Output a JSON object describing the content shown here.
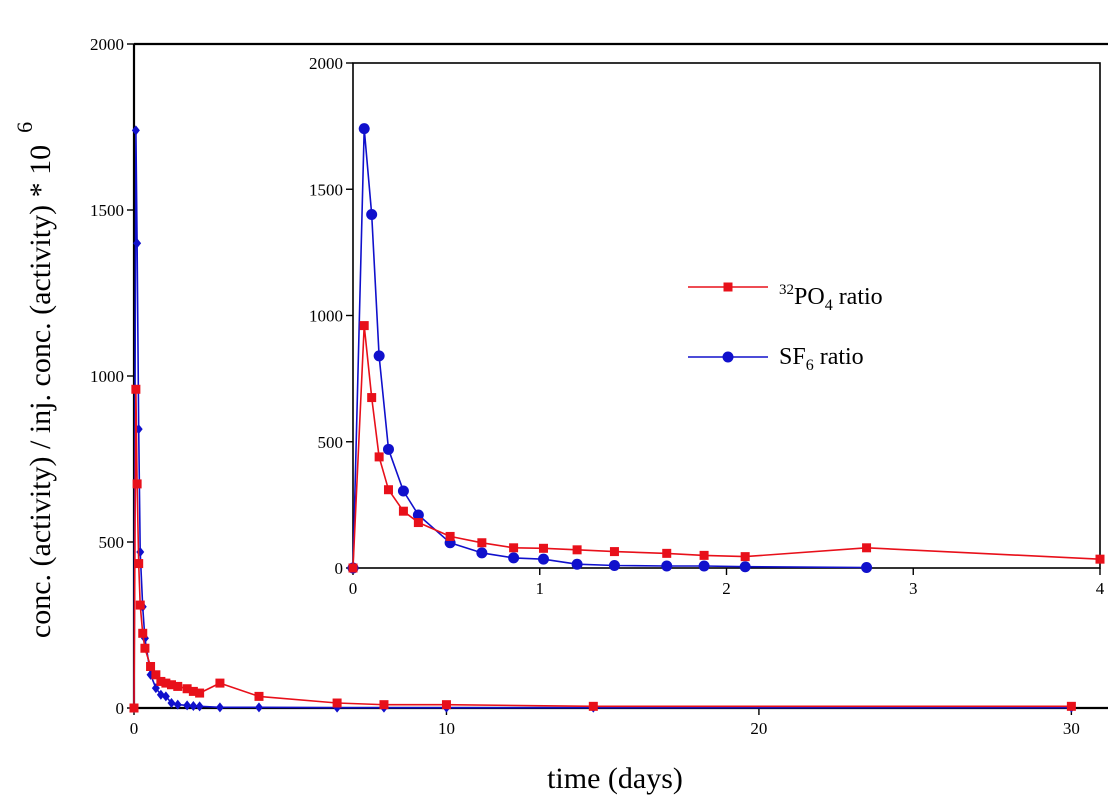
{
  "chart_data": [
    {
      "type": "line",
      "xlabel": "time (days)",
      "ylabel": "conc. (activity) / inj. conc. (activity) * 10",
      "ylabel_exponent": "6",
      "xlim": [
        0,
        30.5
      ],
      "ylim": [
        0,
        2000
      ],
      "xticks": [
        0,
        10,
        20,
        30
      ],
      "yticks": [
        0,
        500,
        1000,
        1500,
        2000
      ],
      "xtick_labels": [
        "0",
        "10",
        "20",
        "30"
      ],
      "ytick_labels": [
        "0",
        "500",
        "1000",
        "1500",
        "2000"
      ],
      "grid": false,
      "legend": "none",
      "colors": {
        "po4": "#e8101a",
        "sf6": "#1010cc"
      },
      "series": [
        {
          "key": "po4",
          "marker": "square",
          "x": [
            0,
            0.06,
            0.1,
            0.15,
            0.2,
            0.28,
            0.35,
            0.53,
            0.7,
            0.86,
            1.02,
            1.2,
            1.4,
            1.7,
            1.9,
            2.1,
            2.75,
            4,
            6.5,
            8,
            10,
            14.7,
            30
          ],
          "y": [
            0,
            960,
            675,
            435,
            310,
            225,
            180,
            125,
            100,
            80,
            75,
            70,
            65,
            58,
            50,
            45,
            75,
            35,
            15,
            10,
            10,
            5,
            5
          ]
        },
        {
          "key": "sf6",
          "marker": "diamond",
          "x": [
            0,
            0.06,
            0.1,
            0.15,
            0.2,
            0.28,
            0.35,
            0.53,
            0.7,
            0.86,
            1.02,
            1.2,
            1.4,
            1.7,
            1.9,
            2.1,
            2.75,
            4,
            6.5,
            8,
            10,
            14.7,
            30
          ],
          "y": [
            0,
            1740,
            1400,
            840,
            470,
            305,
            210,
            100,
            60,
            40,
            35,
            15,
            10,
            8,
            6,
            5,
            2,
            2,
            1,
            1,
            1,
            1,
            1
          ]
        }
      ]
    },
    {
      "type": "line",
      "xlim": [
        0,
        4
      ],
      "ylim": [
        0,
        2000
      ],
      "xticks": [
        0,
        1,
        2,
        3,
        4
      ],
      "yticks": [
        0,
        500,
        1000,
        1500,
        2000
      ],
      "xtick_labels": [
        "0",
        "1",
        "2",
        "3",
        "4"
      ],
      "ytick_labels": [
        "0",
        "500",
        "1000",
        "1500",
        "2000"
      ],
      "grid": false,
      "legend": "upper-right inside the plot",
      "colors": {
        "po4": "#e8101a",
        "sf6": "#1010cc"
      },
      "series": [
        {
          "key": "po4",
          "name_sup": "32",
          "name_main": "PO",
          "name_sub": "4",
          "name_tail": " ratio",
          "marker": "square",
          "x": [
            0,
            0.06,
            0.1,
            0.14,
            0.19,
            0.27,
            0.35,
            0.52,
            0.69,
            0.86,
            1.02,
            1.2,
            1.4,
            1.68,
            1.88,
            2.1,
            2.75,
            4
          ],
          "y": [
            0,
            960,
            675,
            440,
            310,
            225,
            180,
            125,
            100,
            80,
            78,
            72,
            65,
            58,
            50,
            45,
            80,
            35
          ]
        },
        {
          "key": "sf6",
          "name_main": "SF",
          "name_sub": "6",
          "name_tail": " ratio",
          "marker": "circle",
          "x": [
            0,
            0.06,
            0.1,
            0.14,
            0.19,
            0.27,
            0.35,
            0.52,
            0.69,
            0.86,
            1.02,
            1.2,
            1.4,
            1.68,
            1.88,
            2.1,
            2.75
          ],
          "y": [
            0,
            1740,
            1400,
            840,
            470,
            305,
            210,
            100,
            60,
            40,
            35,
            15,
            10,
            8,
            8,
            5,
            2
          ]
        }
      ]
    }
  ]
}
